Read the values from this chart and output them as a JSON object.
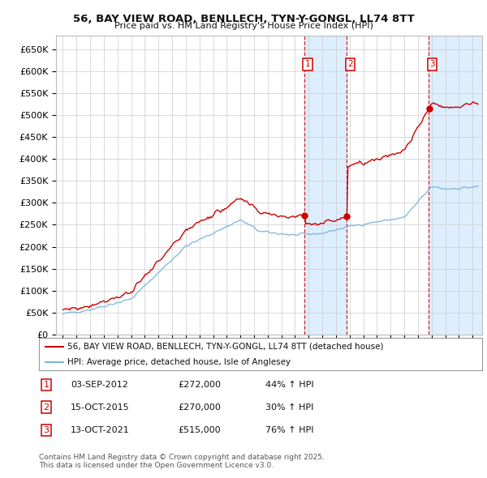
{
  "title": "56, BAY VIEW ROAD, BENLLECH, TYN-Y-GONGL, LL74 8TT",
  "subtitle": "Price paid vs. HM Land Registry's House Price Index (HPI)",
  "legend_line1": "56, BAY VIEW ROAD, BENLLECH, TYN-Y-GONGL, LL74 8TT (detached house)",
  "legend_line2": "HPI: Average price, detached house, Isle of Anglesey",
  "footer": "Contains HM Land Registry data © Crown copyright and database right 2025.\nThis data is licensed under the Open Government Licence v3.0.",
  "transactions": [
    {
      "num": 1,
      "date": "03-SEP-2012",
      "price": 272000,
      "pct": "44%",
      "dir": "↑"
    },
    {
      "num": 2,
      "date": "15-OCT-2015",
      "price": 270000,
      "pct": "30%",
      "dir": "↑"
    },
    {
      "num": 3,
      "date": "13-OCT-2021",
      "price": 515000,
      "pct": "76%",
      "dir": "↑"
    }
  ],
  "transaction_dates_decimal": [
    2012.67,
    2015.79,
    2021.79
  ],
  "hpi_color": "#7ab4d8",
  "price_color": "#cc0000",
  "vline_color": "#cc0000",
  "vband_color": "#ddeeff",
  "grid_color": "#cccccc",
  "bg_color": "#ffffff",
  "ylim": [
    0,
    680000
  ],
  "yticks": [
    0,
    50000,
    100000,
    150000,
    200000,
    250000,
    300000,
    350000,
    400000,
    450000,
    500000,
    550000,
    600000,
    650000
  ],
  "xlim_start": 1994.5,
  "xlim_end": 2025.7
}
